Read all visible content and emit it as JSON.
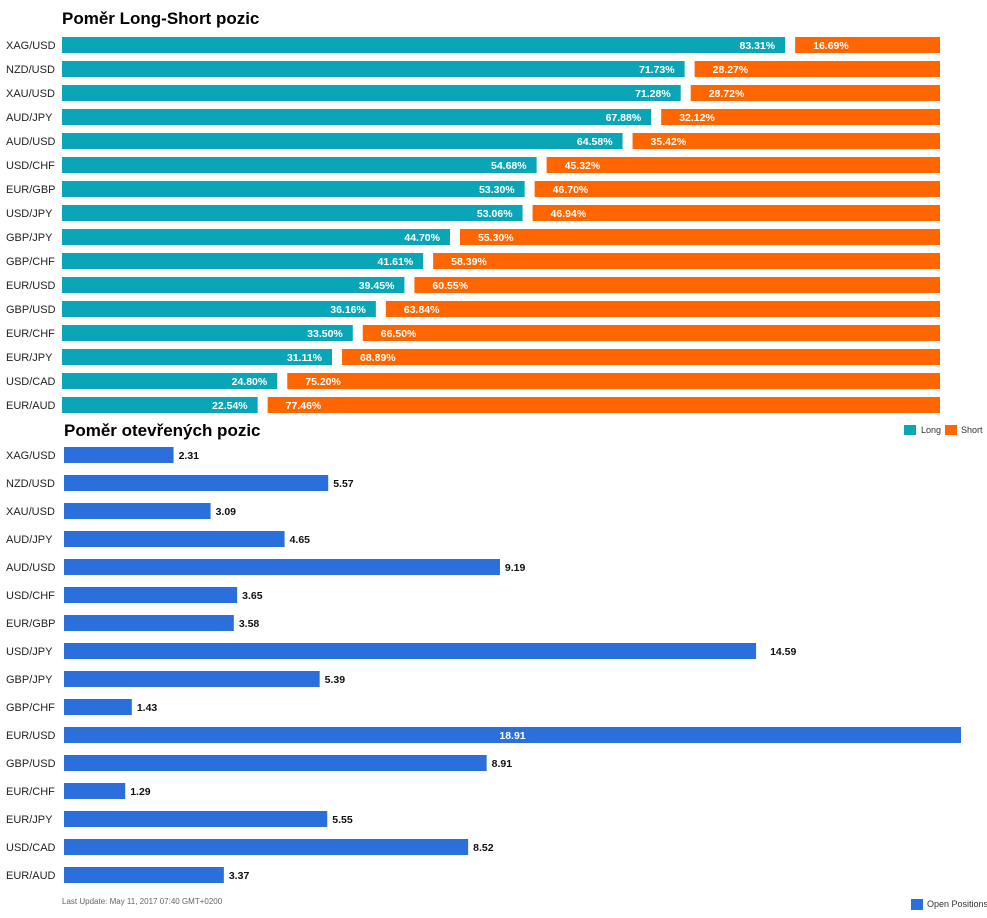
{
  "chart_data": [
    {
      "type": "bar",
      "stacked": true,
      "orientation": "horizontal",
      "title": "Poměr Long-Short pozic",
      "categories": [
        "XAG/USD",
        "NZD/USD",
        "XAU/USD",
        "AUD/JPY",
        "AUD/USD",
        "USD/CHF",
        "EUR/GBP",
        "USD/JPY",
        "GBP/JPY",
        "GBP/CHF",
        "EUR/USD",
        "GBP/USD",
        "EUR/CHF",
        "EUR/JPY",
        "USD/CAD",
        "EUR/AUD"
      ],
      "series": [
        {
          "name": "Long",
          "color": "#0aa6b8",
          "values": [
            83.31,
            71.73,
            71.28,
            67.88,
            64.58,
            54.68,
            53.3,
            53.06,
            44.7,
            41.61,
            39.45,
            36.16,
            33.5,
            31.11,
            24.8,
            22.54
          ],
          "labels": [
            "83.31%",
            "71.73%",
            "71.28%",
            "67.88%",
            "64.58%",
            "54.68%",
            "53.30%",
            "53.06%",
            "44.70%",
            "41.61%",
            "39.45%",
            "36.16%",
            "33.50%",
            "31.11%",
            "24.80%",
            "22.54%"
          ]
        },
        {
          "name": "Short",
          "color": "#ff6600",
          "values": [
            16.69,
            28.27,
            28.72,
            32.12,
            35.42,
            45.32,
            46.7,
            46.94,
            55.3,
            58.39,
            60.55,
            63.84,
            66.5,
            68.89,
            75.2,
            77.46
          ],
          "labels": [
            "16.69%",
            "28.27%",
            "28.72%",
            "32.12%",
            "35.42%",
            "45.32%",
            "46.70%",
            "46.94%",
            "55.30%",
            "58.39%",
            "60.55%",
            "63.84%",
            "66.50%",
            "68.89%",
            "75.20%",
            "77.46%"
          ]
        }
      ],
      "legend": "top-right"
    },
    {
      "type": "bar",
      "orientation": "horizontal",
      "title": "Poměr otevřených pozic",
      "categories": [
        "XAG/USD",
        "NZD/USD",
        "XAU/USD",
        "AUD/JPY",
        "AUD/USD",
        "USD/CHF",
        "EUR/GBP",
        "USD/JPY",
        "GBP/JPY",
        "GBP/CHF",
        "EUR/USD",
        "GBP/USD",
        "EUR/CHF",
        "EUR/JPY",
        "USD/CAD",
        "EUR/AUD"
      ],
      "series": [
        {
          "name": "Open Positions",
          "color": "#2a6fdb",
          "values": [
            2.31,
            5.57,
            3.09,
            4.65,
            9.19,
            3.65,
            3.58,
            14.59,
            5.39,
            1.43,
            18.91,
            8.91,
            1.29,
            5.55,
            8.52,
            3.37
          ],
          "labels": [
            "2.31",
            "5.57",
            "3.09",
            "4.65",
            "9.19",
            "3.65",
            "3.58",
            "14.59",
            "5.39",
            "1.43",
            "18.91",
            "8.91",
            "1.29",
            "5.55",
            "8.52",
            "3.37"
          ]
        }
      ],
      "xlim": [
        0,
        18.91
      ],
      "legend": "bottom-right"
    }
  ],
  "footer": "Last Update: May 11, 2017 07:40 GMT+0200"
}
